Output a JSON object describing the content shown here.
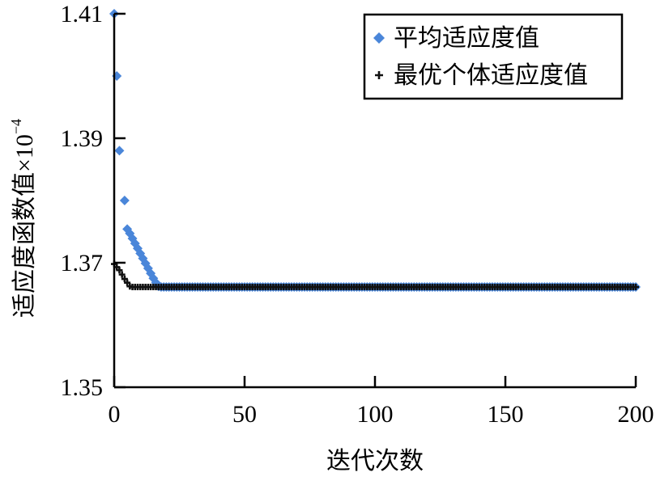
{
  "chart_data": {
    "type": "scatter",
    "xlabel": "迭代次数",
    "ylabel": "适应度函数值",
    "ylabel_suffix": "×10",
    "ylabel_exponent": "−4",
    "xlim": [
      0,
      200
    ],
    "ylim": [
      1.35,
      1.41
    ],
    "x_ticks": [
      0,
      50,
      100,
      150,
      200
    ],
    "x_tick_labels": [
      "0",
      "50",
      "100",
      "150",
      "200"
    ],
    "y_ticks": [
      1.35,
      1.37,
      1.39,
      1.41
    ],
    "y_tick_labels": [
      "1.35",
      "1.37",
      "1.39",
      "1.41"
    ],
    "grid": false,
    "legend_position": "top-right",
    "series": [
      {
        "name": "平均适应度值",
        "marker": "diamond",
        "color": "#4A86D9",
        "head": [
          [
            0,
            1.41
          ],
          [
            1,
            1.4
          ],
          [
            2,
            1.388
          ],
          [
            4,
            1.38
          ],
          [
            5,
            1.3754
          ],
          [
            6,
            1.3747
          ],
          [
            7,
            1.3739
          ],
          [
            8,
            1.3731
          ],
          [
            9,
            1.3723
          ],
          [
            10,
            1.3715
          ],
          [
            11,
            1.3707
          ],
          [
            12,
            1.3699
          ],
          [
            13,
            1.3691
          ],
          [
            14,
            1.3683
          ],
          [
            15,
            1.3675
          ],
          [
            16,
            1.3668
          ],
          [
            17,
            1.3662
          ],
          [
            18,
            1.3661
          ],
          [
            19,
            1.3661
          ]
        ],
        "tail_from": 20,
        "tail_to": 200,
        "tail_step": 1,
        "tail_value": 1.3661
      },
      {
        "name": "最优个体适应度值",
        "marker": "plus",
        "color": "#111111",
        "head": [
          [
            0,
            1.3698
          ],
          [
            1,
            1.3693
          ],
          [
            2,
            1.3688
          ],
          [
            3,
            1.3681
          ],
          [
            4,
            1.3674
          ],
          [
            5,
            1.3668
          ],
          [
            6,
            1.3662
          ],
          [
            7,
            1.3661
          ]
        ],
        "tail_from": 8,
        "tail_to": 200,
        "tail_step": 1,
        "tail_value": 1.3661
      }
    ]
  }
}
